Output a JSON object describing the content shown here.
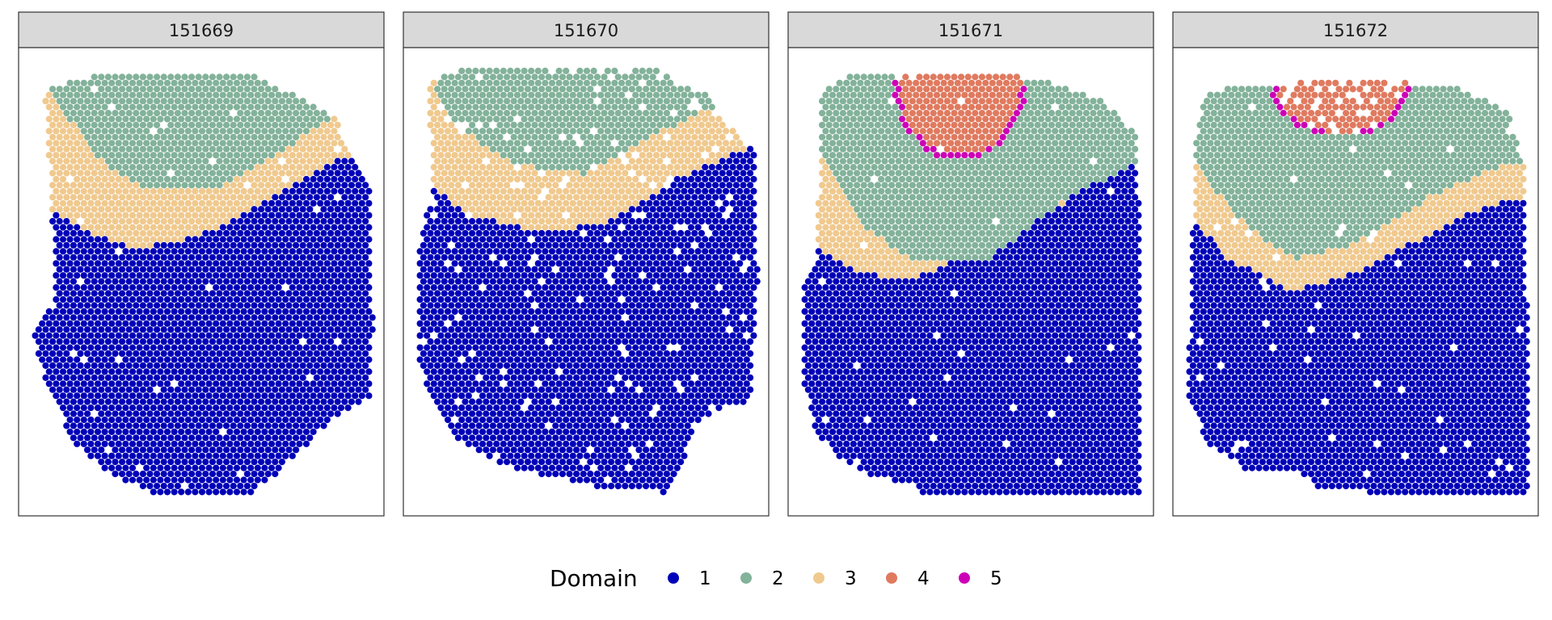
{
  "chart_data": {
    "type": "scatter",
    "panels": [
      "151669",
      "151670",
      "151671",
      "151672"
    ],
    "legend": {
      "title": "Domain",
      "position": "bottom",
      "entries": [
        {
          "label": "1",
          "color": "#0000B8"
        },
        {
          "label": "2",
          "color": "#83B29A"
        },
        {
          "label": "3",
          "color": "#F0C98E"
        },
        {
          "label": "4",
          "color": "#E07A5F"
        },
        {
          "label": "5",
          "color": "#CC00B6"
        }
      ]
    },
    "grid": false,
    "axes_visible": false
  }
}
